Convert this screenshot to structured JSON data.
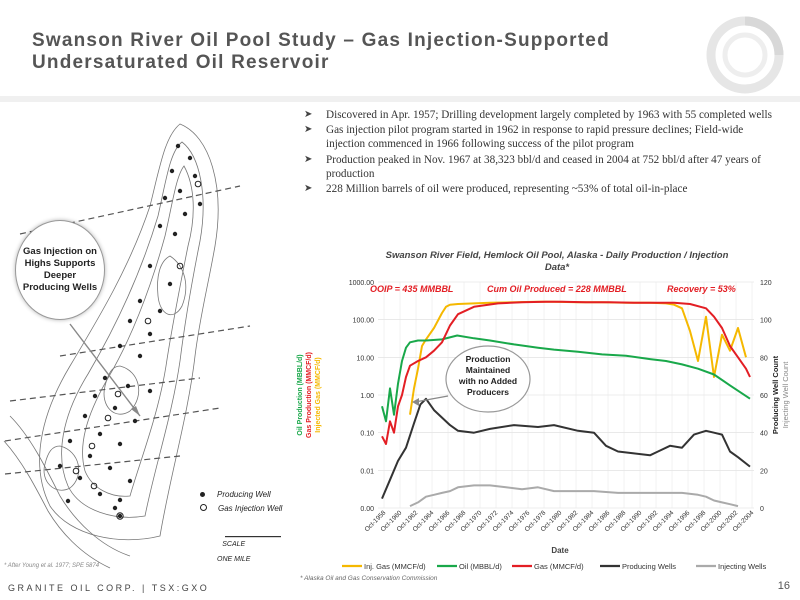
{
  "header": {
    "title_line1": "Swanson River Oil Pool Study – Gas Injection-Supported",
    "title_line2": "Undersaturated Oil Reservoir"
  },
  "bullets": [
    "Discovered in Apr. 1957; Drilling development largely completed by 1963 with 55 completed wells",
    "Gas injection pilot program started in 1962 in response to rapid pressure declines; Field-wide injection commenced in 1966 following success of the pilot program",
    "Production peaked in Nov. 1967 at 38,323 bbl/d and ceased in 2004 at 752 bbl/d after 47 years of production",
    "228 Million barrels of oil were produced, representing ~53% of total oil-in-place"
  ],
  "map": {
    "callout": "Gas Injection on Highs Supports Deeper Producing Wells",
    "legend_producing": "Producing Well",
    "legend_injection": "Gas Injection Well",
    "scale_label": "SCALE",
    "scale_value": "ONE MILE",
    "citation": "* After Young et al. 1977; SPE 5874"
  },
  "chart_data": {
    "type": "line",
    "title": "Swanson River Field, Hemlock Oil Pool, Alaska - Daily Production / Injection Data*",
    "annotations": {
      "ooip": "OOIP = 435 MMBBL",
      "cum": "Cum Oil Produced = 228 MMBBL",
      "recovery": "Recovery = 53%",
      "callout": "Production Maintained with no Added Producers"
    },
    "xlabel": "Date",
    "ylabel_left": [
      "Oil Production (MBBL/d)",
      "Gas Production (MMCF/d)",
      "Injected Gas (MMCF/d)"
    ],
    "ylabel_right": [
      "Producing Well Count",
      "Injecting Well Count"
    ],
    "y_left_scale": "log",
    "y_left_ticks": [
      "0.00",
      "0.01",
      "0.10",
      "1.00",
      "10.00",
      "100.00",
      "1000.00"
    ],
    "y_right_ticks": [
      "0",
      "20",
      "40",
      "60",
      "80",
      "100",
      "120"
    ],
    "x_ticks": [
      "Oct-1958",
      "Oct-1960",
      "Oct-1962",
      "Oct-1964",
      "Oct-1966",
      "Oct-1968",
      "Oct-1970",
      "Oct-1972",
      "Oct-1974",
      "Oct-1976",
      "Oct-1978",
      "Oct-1980",
      "Oct-1982",
      "Oct-1984",
      "Oct-1986",
      "Oct-1988",
      "Oct-1990",
      "Oct-1992",
      "Oct-1994",
      "Oct-1996",
      "Oct-1998",
      "Oct-2000",
      "Oct-2002",
      "Oct-2004"
    ],
    "legend_position": "bottom",
    "grid": true,
    "series": [
      {
        "name": "Inj. Gas (MMCF/d)",
        "color": "#f5b800",
        "axis": "left",
        "x": [
          1962.0,
          1962.5,
          1963.0,
          1963.5,
          1964.0,
          1965.0,
          1966.0,
          1966.5,
          1967.0,
          1968.0,
          1970.0,
          1972.0,
          1975.0,
          1978.0,
          1980.0,
          1983.0,
          1986.0,
          1989.0,
          1992.0,
          1994.0,
          1995.0,
          1996.0,
          1997.0,
          1998.0,
          1999.0,
          2000.0,
          2001.0,
          2002.0,
          2003.0,
          2004.0
        ],
        "y": [
          0.3,
          1.5,
          5,
          20,
          30,
          60,
          150,
          220,
          250,
          260,
          270,
          280,
          290,
          300,
          300,
          290,
          290,
          280,
          280,
          270,
          250,
          200,
          50,
          8,
          120,
          3,
          40,
          15,
          60,
          10
        ]
      },
      {
        "name": "Oil (MBBL/d)",
        "color": "#19a84a",
        "axis": "left",
        "x": [
          1958.5,
          1959.0,
          1959.5,
          1960.0,
          1960.5,
          1961.0,
          1961.5,
          1962.0,
          1963.0,
          1964.0,
          1966.0,
          1967.9,
          1970.0,
          1972.0,
          1975.0,
          1978.0,
          1980.0,
          1983.0,
          1986.0,
          1989.0,
          1992.0,
          1994.0,
          1996.0,
          1998.0,
          2000.0,
          2002.0,
          2004.5
        ],
        "y": [
          0.5,
          0.2,
          1.5,
          0.3,
          2,
          8,
          18,
          25,
          28,
          28,
          30,
          38,
          32,
          28,
          22,
          18,
          16,
          14,
          12,
          11,
          9,
          8,
          6.5,
          5,
          3.5,
          1.8,
          0.8
        ]
      },
      {
        "name": "Gas (MMCF/d)",
        "color": "#e31e24",
        "axis": "left",
        "x": [
          1958.5,
          1959.0,
          1959.5,
          1960.0,
          1960.5,
          1961.0,
          1961.5,
          1962.0,
          1963.0,
          1964.0,
          1965.0,
          1966.0,
          1967.0,
          1968.0,
          1970.0,
          1973.0,
          1976.0,
          1979.0,
          1981.0,
          1984.0,
          1987.0,
          1990.0,
          1993.0,
          1995.0,
          1997.0,
          1999.0,
          2000.0,
          2001.0,
          2002.0,
          2003.0,
          2004.0,
          2004.5
        ],
        "y": [
          0.08,
          0.05,
          0.2,
          0.1,
          0.5,
          1,
          3,
          6,
          8,
          10,
          15,
          25,
          70,
          140,
          220,
          270,
          290,
          300,
          300,
          290,
          290,
          280,
          280,
          280,
          260,
          200,
          120,
          60,
          20,
          10,
          5,
          3
        ]
      },
      {
        "name": "Producing Wells",
        "color": "#333333",
        "axis": "right",
        "x": [
          1958.5,
          1959.5,
          1960.5,
          1961.5,
          1962.5,
          1963.3,
          1964.0,
          1965.0,
          1966.0,
          1967.0,
          1968.0,
          1970.0,
          1972.0,
          1975.0,
          1978.0,
          1980.0,
          1983.0,
          1985.0,
          1986.5,
          1988.0,
          1990.0,
          1992.0,
          1993.0,
          1994.5,
          1996.0,
          1997.5,
          1999.0,
          2000.0,
          2001.0,
          2002.0,
          2003.0,
          2004.5
        ],
        "y": [
          5,
          15,
          25,
          32,
          45,
          55,
          58,
          52,
          48,
          44,
          41,
          40,
          42,
          44,
          43,
          44,
          41,
          40,
          33,
          30,
          29,
          28,
          30,
          33,
          32,
          39,
          41,
          40,
          39,
          30,
          27,
          22
        ]
      },
      {
        "name": "Injecting Wells",
        "color": "#aaaaaa",
        "axis": "right",
        "x": [
          1962.0,
          1963.0,
          1964.0,
          1965.0,
          1966.0,
          1967.0,
          1968.0,
          1970.0,
          1972.0,
          1974.0,
          1976.0,
          1978.0,
          1980.0,
          1982.0,
          1985.0,
          1988.0,
          1990.0,
          1992.0,
          1994.0,
          1996.0,
          1998.0,
          1999.0,
          2000.0,
          2001.0,
          2002.0,
          2003.0
        ],
        "y": [
          1,
          3,
          6,
          7,
          8,
          9,
          11,
          12,
          12,
          11,
          10,
          11,
          9,
          9,
          9,
          8,
          8,
          8,
          8,
          8,
          7,
          6,
          4,
          3,
          2,
          1
        ]
      }
    ]
  },
  "footer": {
    "company": "GRANITE OIL CORP. | TSX:GXO",
    "source": "* Alaska Oil and Gas Conservation Commission",
    "page": "16"
  }
}
